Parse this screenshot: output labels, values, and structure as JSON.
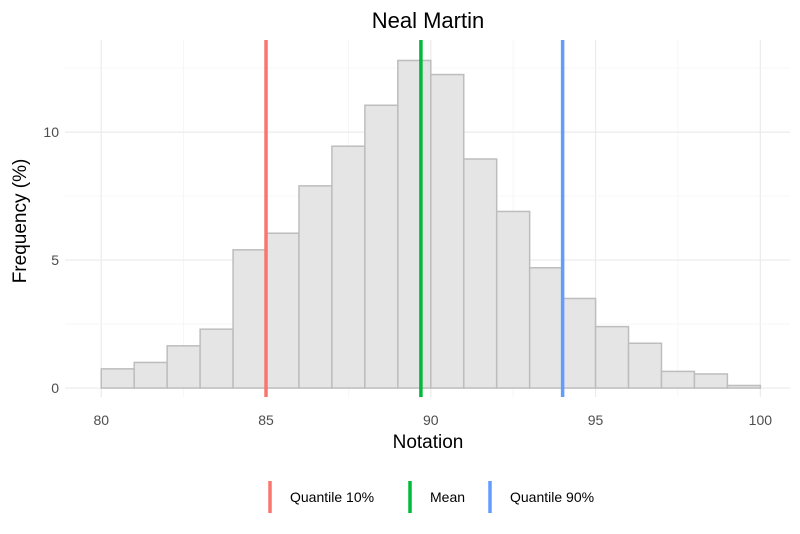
{
  "chart_data": {
    "type": "histogram",
    "title": "Neal Martin",
    "xlabel": "Notation",
    "ylabel": "Frequency (%)",
    "xlim": [
      78.9,
      100.9
    ],
    "ylim": [
      -0.35,
      13.6
    ],
    "x_ticks": [
      80,
      85,
      90,
      95,
      100
    ],
    "y_ticks": [
      0,
      5,
      10
    ],
    "bins": [
      {
        "x0": 80,
        "x1": 81,
        "value": 0.75
      },
      {
        "x0": 81,
        "x1": 82,
        "value": 1.0
      },
      {
        "x0": 82,
        "x1": 83,
        "value": 1.65
      },
      {
        "x0": 83,
        "x1": 84,
        "value": 2.3
      },
      {
        "x0": 84,
        "x1": 85,
        "value": 5.4
      },
      {
        "x0": 85,
        "x1": 86,
        "value": 6.05
      },
      {
        "x0": 86,
        "x1": 87,
        "value": 7.9
      },
      {
        "x0": 87,
        "x1": 88,
        "value": 9.45
      },
      {
        "x0": 88,
        "x1": 89,
        "value": 11.05
      },
      {
        "x0": 89,
        "x1": 90,
        "value": 12.8
      },
      {
        "x0": 90,
        "x1": 91,
        "value": 12.25
      },
      {
        "x0": 91,
        "x1": 92,
        "value": 8.95
      },
      {
        "x0": 92,
        "x1": 93,
        "value": 6.9
      },
      {
        "x0": 93,
        "x1": 94,
        "value": 4.7
      },
      {
        "x0": 94,
        "x1": 95,
        "value": 3.5
      },
      {
        "x0": 95,
        "x1": 96,
        "value": 2.4
      },
      {
        "x0": 96,
        "x1": 97,
        "value": 1.75
      },
      {
        "x0": 97,
        "x1": 98,
        "value": 0.65
      },
      {
        "x0": 98,
        "x1": 99,
        "value": 0.55
      },
      {
        "x0": 99,
        "x1": 100,
        "value": 0.1
      }
    ],
    "vlines": [
      {
        "name": "Quantile 10%",
        "x": 85.0,
        "color": "#F8766D"
      },
      {
        "name": "Mean",
        "x": 89.7,
        "color": "#00BA38"
      },
      {
        "name": "Quantile 90%",
        "x": 94.0,
        "color": "#619CFF"
      }
    ],
    "bar_fill": "#e5e5e5",
    "bar_stroke": "#bdbdbd",
    "grid": true,
    "legend_position": "bottom"
  }
}
